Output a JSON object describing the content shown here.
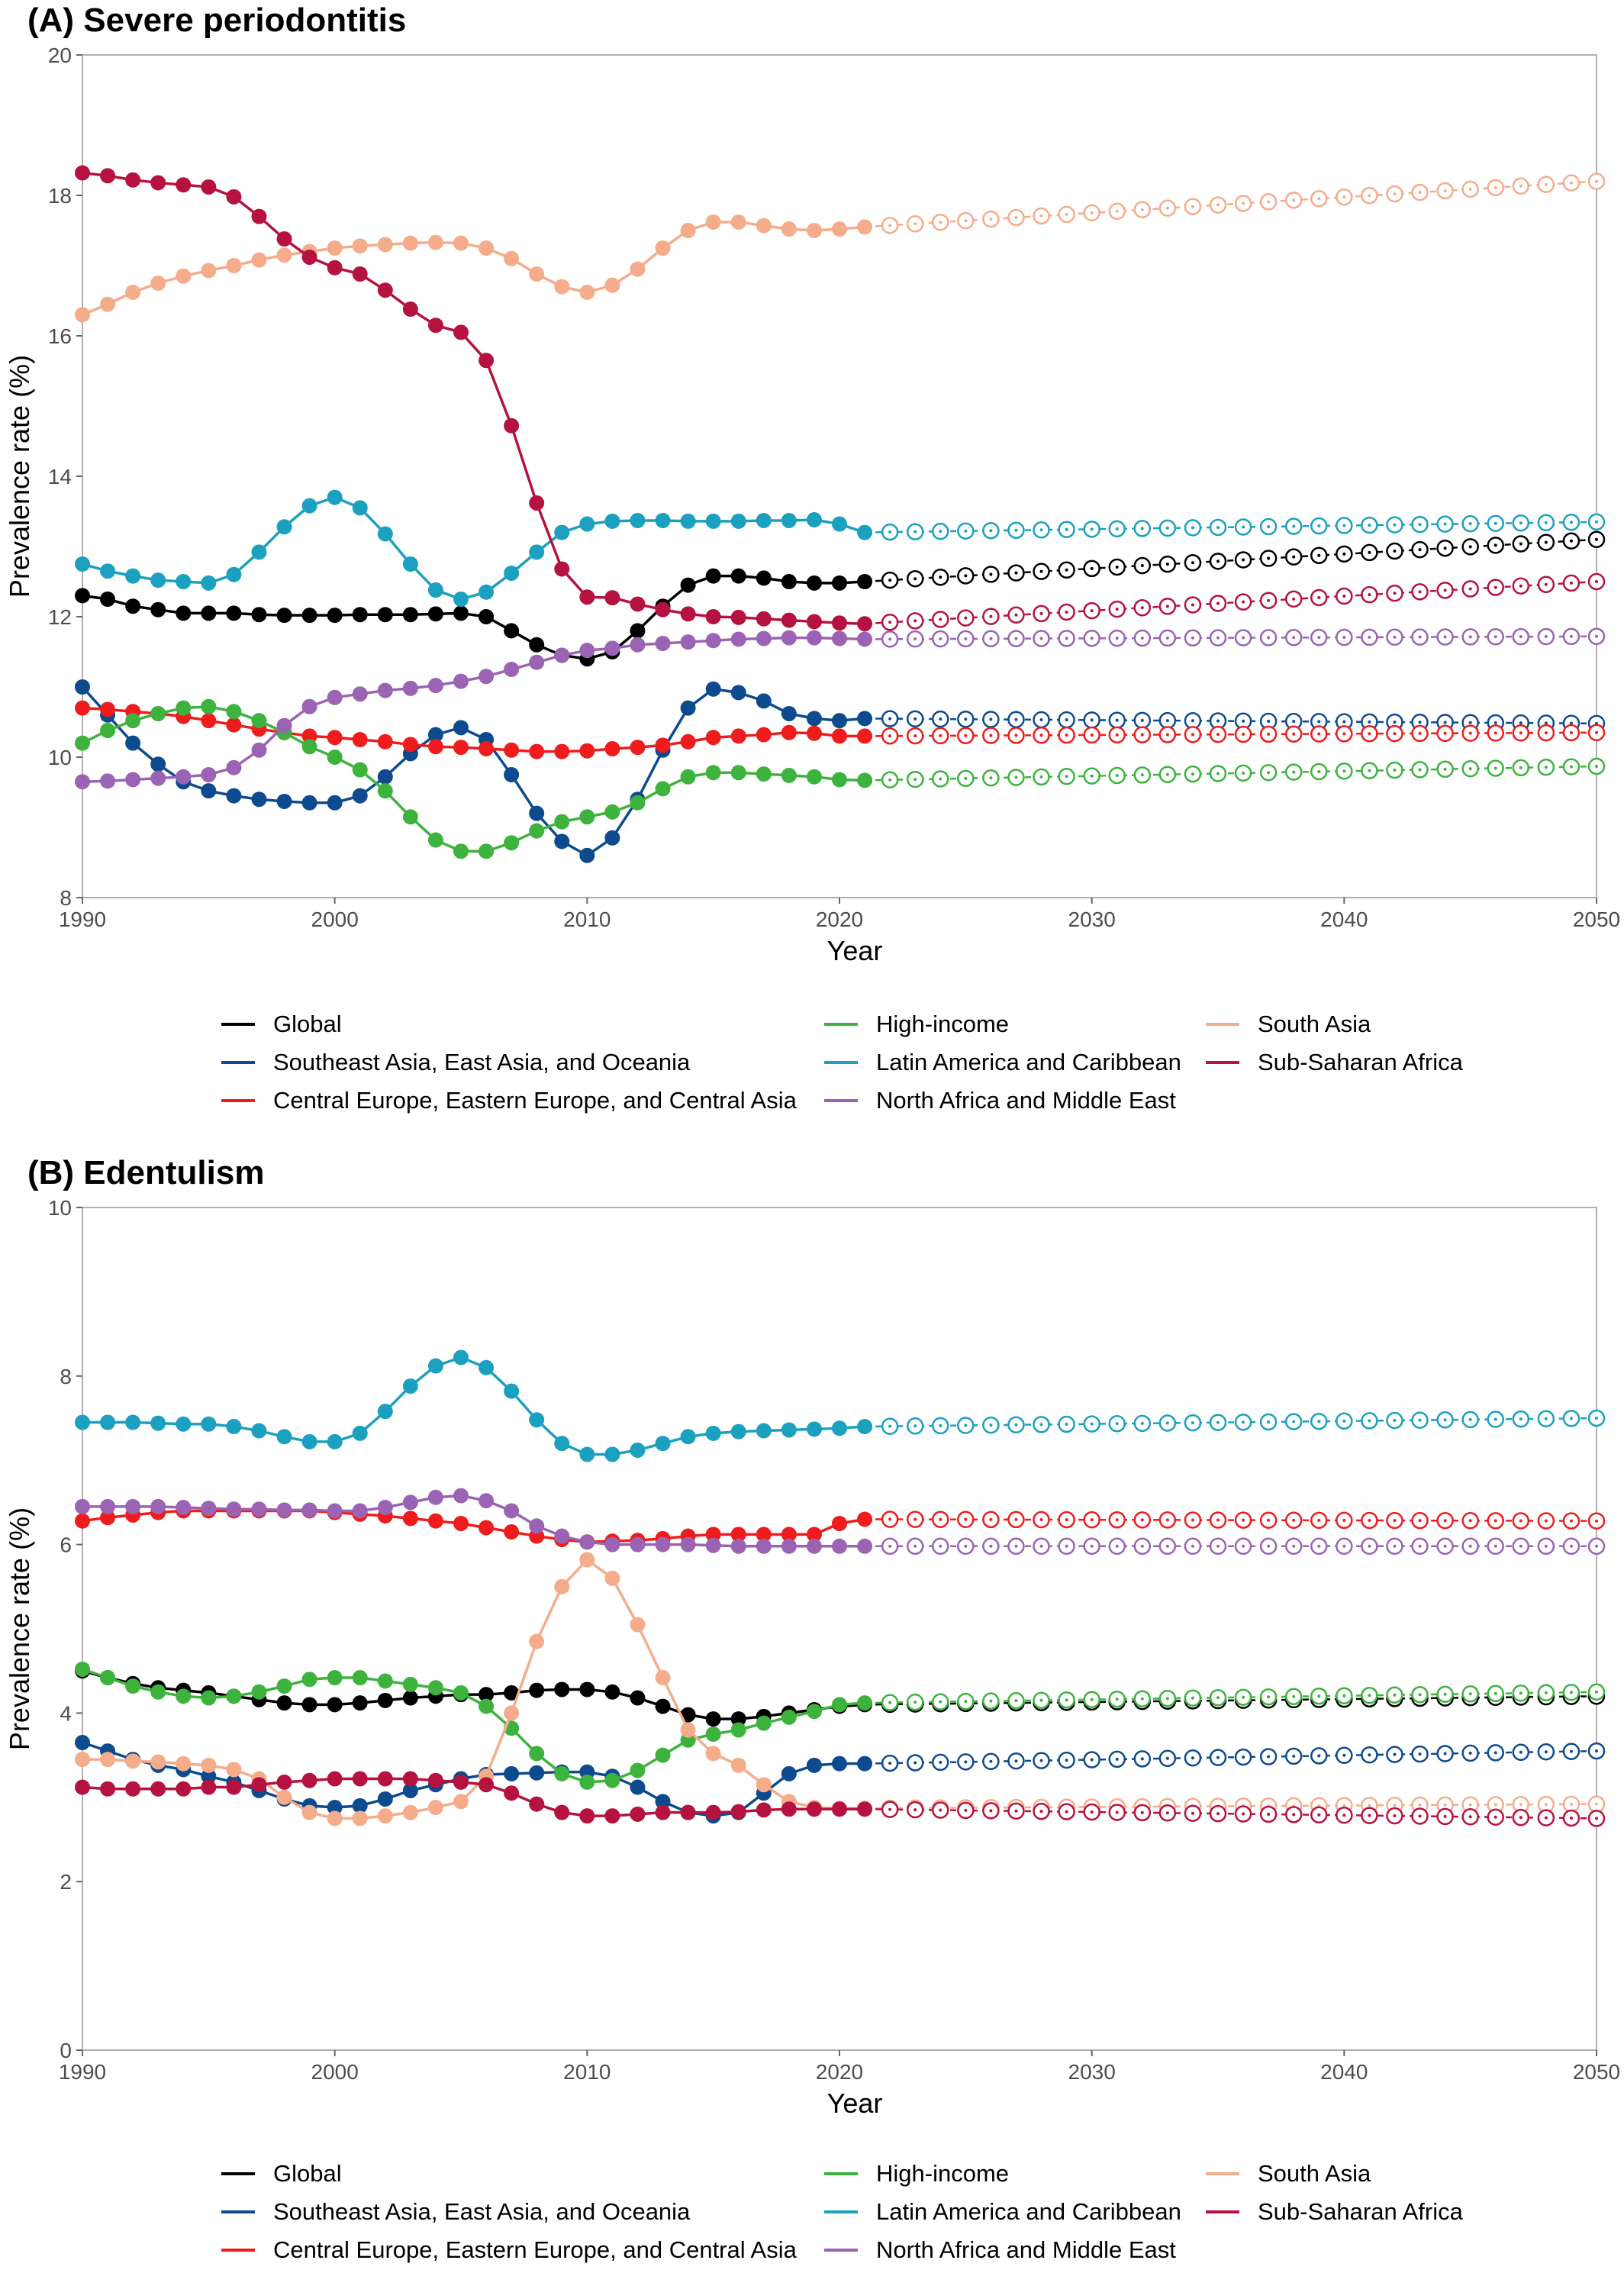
{
  "chart_data": [
    {
      "type": "line",
      "panel_title": "(A) Severe periodontitis",
      "xlabel": "Year",
      "ylabel": "Prevalence rate (%)",
      "xlim": [
        1990,
        2050
      ],
      "ylim": [
        8,
        20
      ],
      "xticks": [
        1990,
        2000,
        2010,
        2020,
        2030,
        2040,
        2050
      ],
      "yticks": [
        8,
        10,
        12,
        14,
        16,
        18,
        20
      ],
      "observed_years": [
        1990,
        2021
      ],
      "forecast_years": [
        2022,
        2050
      ],
      "observed_style": "solid line, filled circles",
      "forecast_style": "dashed line, open circles",
      "series": [
        {
          "name": "Global",
          "color": "#000000",
          "observed": [
            12.3,
            12.25,
            12.15,
            12.1,
            12.05,
            12.05,
            12.05,
            12.03,
            12.02,
            12.02,
            12.02,
            12.03,
            12.03,
            12.03,
            12.04,
            12.05,
            12.0,
            11.8,
            11.6,
            11.45,
            11.4,
            11.5,
            11.8,
            12.15,
            12.45,
            12.58,
            12.58,
            12.55,
            12.5,
            12.48,
            12.48,
            12.5
          ],
          "forecast_end": 13.1
        },
        {
          "name": "Southeast Asia, East Asia, and Oceania",
          "color": "#0d4a8e",
          "observed": [
            11.0,
            10.6,
            10.2,
            9.9,
            9.65,
            9.52,
            9.45,
            9.4,
            9.37,
            9.35,
            9.35,
            9.45,
            9.72,
            10.05,
            10.32,
            10.42,
            10.25,
            9.75,
            9.2,
            8.8,
            8.6,
            8.85,
            9.4,
            10.1,
            10.7,
            10.97,
            10.92,
            10.8,
            10.62,
            10.55,
            10.52,
            10.55
          ],
          "forecast_end": 10.48
        },
        {
          "name": "Central Europe, Eastern Europe, and Central Asia",
          "color": "#ee1c1c",
          "observed": [
            10.7,
            10.68,
            10.65,
            10.62,
            10.58,
            10.52,
            10.46,
            10.4,
            10.35,
            10.3,
            10.28,
            10.25,
            10.22,
            10.18,
            10.15,
            10.14,
            10.12,
            10.1,
            10.08,
            10.08,
            10.09,
            10.12,
            10.14,
            10.17,
            10.22,
            10.28,
            10.3,
            10.32,
            10.35,
            10.34,
            10.3,
            10.3
          ],
          "forecast_end": 10.35
        },
        {
          "name": "High-income",
          "color": "#3db33d",
          "observed": [
            10.2,
            10.38,
            10.52,
            10.62,
            10.7,
            10.72,
            10.65,
            10.52,
            10.35,
            10.15,
            10.0,
            9.82,
            9.52,
            9.15,
            8.82,
            8.66,
            8.66,
            8.78,
            8.95,
            9.08,
            9.15,
            9.22,
            9.35,
            9.55,
            9.72,
            9.78,
            9.78,
            9.76,
            9.74,
            9.72,
            9.68,
            9.67
          ],
          "forecast_end": 9.87
        },
        {
          "name": "Latin America and Caribbean",
          "color": "#1ba0bf",
          "observed": [
            12.75,
            12.65,
            12.58,
            12.52,
            12.5,
            12.48,
            12.6,
            12.92,
            13.28,
            13.58,
            13.7,
            13.55,
            13.18,
            12.75,
            12.38,
            12.25,
            12.35,
            12.62,
            12.92,
            13.2,
            13.32,
            13.36,
            13.37,
            13.37,
            13.36,
            13.36,
            13.36,
            13.37,
            13.37,
            13.38,
            13.32,
            13.2
          ],
          "forecast_end": 13.35
        },
        {
          "name": "North Africa and Middle East",
          "color": "#9b63b3",
          "observed": [
            9.65,
            9.66,
            9.68,
            9.7,
            9.72,
            9.75,
            9.85,
            10.1,
            10.45,
            10.72,
            10.85,
            10.9,
            10.95,
            10.98,
            11.02,
            11.08,
            11.15,
            11.25,
            11.35,
            11.45,
            11.52,
            11.55,
            11.6,
            11.62,
            11.64,
            11.66,
            11.68,
            11.69,
            11.7,
            11.7,
            11.69,
            11.68
          ],
          "forecast_end": 11.72
        },
        {
          "name": "South Asia",
          "color": "#f5ac8b",
          "observed": [
            16.3,
            16.45,
            16.62,
            16.75,
            16.85,
            16.93,
            17.0,
            17.08,
            17.15,
            17.2,
            17.25,
            17.28,
            17.3,
            17.32,
            17.33,
            17.32,
            17.25,
            17.1,
            16.88,
            16.7,
            16.62,
            16.72,
            16.95,
            17.25,
            17.5,
            17.62,
            17.62,
            17.57,
            17.52,
            17.5,
            17.52,
            17.55
          ],
          "forecast_end": 18.2
        },
        {
          "name": "Sub-Saharan Africa",
          "color": "#b5123f",
          "observed": [
            18.32,
            18.28,
            18.22,
            18.18,
            18.15,
            18.12,
            17.98,
            17.7,
            17.38,
            17.12,
            16.97,
            16.88,
            16.65,
            16.38,
            16.15,
            16.05,
            15.65,
            14.72,
            13.62,
            12.68,
            12.28,
            12.27,
            12.18,
            12.1,
            12.04,
            12.0,
            11.99,
            11.97,
            11.95,
            11.93,
            11.91,
            11.9
          ],
          "forecast_end": 12.5
        }
      ],
      "legend": "bottom"
    },
    {
      "type": "line",
      "panel_title": "(B) Edentulism",
      "xlabel": "Year",
      "ylabel": "Prevalence rate (%)",
      "xlim": [
        1990,
        2050
      ],
      "ylim": [
        0,
        10
      ],
      "xticks": [
        1990,
        2000,
        2010,
        2020,
        2030,
        2040,
        2050
      ],
      "yticks": [
        0,
        2,
        4,
        6,
        8,
        10
      ],
      "observed_years": [
        1990,
        2021
      ],
      "forecast_years": [
        2022,
        2050
      ],
      "observed_style": "solid line, filled circles",
      "forecast_style": "dashed line, open circles",
      "series": [
        {
          "name": "Global",
          "color": "#000000",
          "observed": [
            4.5,
            4.42,
            4.35,
            4.3,
            4.27,
            4.24,
            4.2,
            4.16,
            4.12,
            4.1,
            4.1,
            4.12,
            4.15,
            4.18,
            4.2,
            4.22,
            4.22,
            4.24,
            4.27,
            4.28,
            4.28,
            4.25,
            4.18,
            4.08,
            3.98,
            3.93,
            3.93,
            3.96,
            4.0,
            4.04,
            4.08,
            4.1
          ],
          "forecast_end": 4.2
        },
        {
          "name": "Southeast Asia, East Asia, and Oceania",
          "color": "#0d4a8e",
          "observed": [
            3.65,
            3.55,
            3.45,
            3.38,
            3.33,
            3.25,
            3.18,
            3.08,
            2.98,
            2.9,
            2.88,
            2.9,
            2.98,
            3.08,
            3.15,
            3.22,
            3.27,
            3.28,
            3.29,
            3.3,
            3.3,
            3.25,
            3.12,
            2.95,
            2.82,
            2.78,
            2.82,
            3.05,
            3.28,
            3.38,
            3.4,
            3.4
          ],
          "forecast_end": 3.55
        },
        {
          "name": "Central Europe, Eastern Europe, and Central Asia",
          "color": "#ee1c1c",
          "observed": [
            6.28,
            6.32,
            6.35,
            6.38,
            6.4,
            6.4,
            6.4,
            6.4,
            6.4,
            6.4,
            6.38,
            6.36,
            6.34,
            6.31,
            6.28,
            6.25,
            6.2,
            6.15,
            6.1,
            6.06,
            6.03,
            6.04,
            6.05,
            6.07,
            6.1,
            6.12,
            6.12,
            6.12,
            6.12,
            6.12,
            6.25,
            6.3
          ],
          "forecast_end": 6.28
        },
        {
          "name": "High-income",
          "color": "#3db33d",
          "observed": [
            4.52,
            4.42,
            4.32,
            4.25,
            4.2,
            4.18,
            4.2,
            4.25,
            4.32,
            4.4,
            4.42,
            4.42,
            4.38,
            4.34,
            4.3,
            4.24,
            4.08,
            3.82,
            3.52,
            3.28,
            3.18,
            3.2,
            3.32,
            3.5,
            3.68,
            3.75,
            3.8,
            3.88,
            3.95,
            4.02,
            4.1,
            4.12
          ],
          "forecast_end": 4.25
        },
        {
          "name": "Latin America and Caribbean",
          "color": "#1ba0bf",
          "observed": [
            7.45,
            7.45,
            7.45,
            7.44,
            7.43,
            7.43,
            7.4,
            7.35,
            7.28,
            7.22,
            7.22,
            7.32,
            7.58,
            7.88,
            8.12,
            8.22,
            8.1,
            7.82,
            7.48,
            7.2,
            7.07,
            7.07,
            7.12,
            7.2,
            7.28,
            7.32,
            7.34,
            7.35,
            7.36,
            7.37,
            7.38,
            7.4
          ],
          "forecast_end": 7.5
        },
        {
          "name": "North Africa and Middle East",
          "color": "#9b63b3",
          "observed": [
            6.45,
            6.45,
            6.45,
            6.45,
            6.44,
            6.43,
            6.42,
            6.42,
            6.41,
            6.41,
            6.4,
            6.4,
            6.44,
            6.5,
            6.56,
            6.58,
            6.52,
            6.4,
            6.22,
            6.1,
            6.03,
            6.0,
            6.0,
            6.0,
            6.0,
            5.99,
            5.98,
            5.98,
            5.98,
            5.98,
            5.98,
            5.98
          ],
          "forecast_end": 5.98
        },
        {
          "name": "South Asia",
          "color": "#f5ac8b",
          "observed": [
            3.45,
            3.45,
            3.43,
            3.42,
            3.4,
            3.38,
            3.33,
            3.22,
            3.0,
            2.82,
            2.75,
            2.75,
            2.78,
            2.82,
            2.88,
            2.95,
            3.25,
            4.0,
            4.85,
            5.5,
            5.82,
            5.6,
            5.05,
            4.42,
            3.8,
            3.52,
            3.38,
            3.15,
            2.95,
            2.88,
            2.87,
            2.87
          ],
          "forecast_end": 2.92
        },
        {
          "name": "Sub-Saharan Africa",
          "color": "#b5123f",
          "observed": [
            3.12,
            3.1,
            3.1,
            3.1,
            3.1,
            3.12,
            3.12,
            3.15,
            3.18,
            3.2,
            3.22,
            3.22,
            3.22,
            3.22,
            3.2,
            3.18,
            3.15,
            3.05,
            2.92,
            2.82,
            2.78,
            2.78,
            2.8,
            2.82,
            2.82,
            2.82,
            2.83,
            2.85,
            2.86,
            2.86,
            2.86,
            2.86
          ],
          "forecast_end": 2.75
        }
      ],
      "legend": "bottom"
    }
  ],
  "legend_order": [
    "Global",
    "High-income",
    "South Asia",
    "Southeast Asia, East Asia, and Oceania",
    "Latin America and Caribbean",
    "Sub-Saharan Africa",
    "Central Europe, Eastern Europe, and Central Asia",
    "North Africa and Middle East"
  ]
}
